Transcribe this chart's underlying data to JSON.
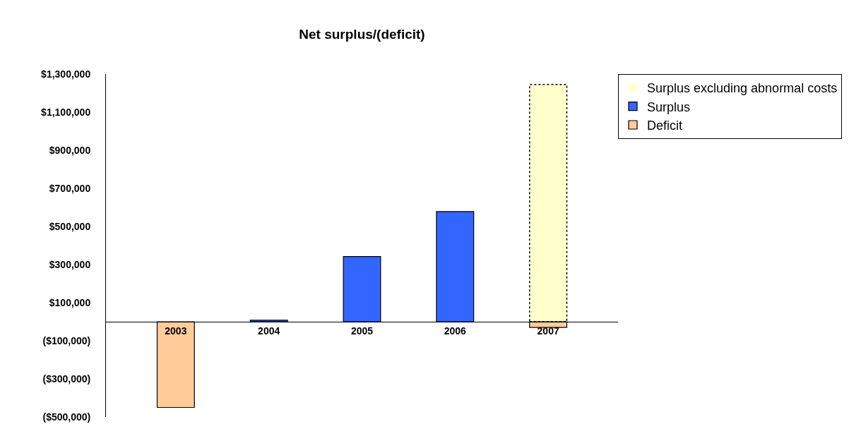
{
  "chart_data": {
    "type": "bar",
    "title": "Net surplus/(deficit)",
    "categories": [
      "2003",
      "2004",
      "2005",
      "2006",
      "2007"
    ],
    "series": [
      {
        "name": "Surplus excluding abnormal costs",
        "color": "#ffffcc",
        "line_style": "dotted",
        "values": [
          null,
          null,
          null,
          null,
          1245000
        ]
      },
      {
        "name": "Surplus",
        "color": "#3366ff",
        "values": [
          null,
          8000,
          342000,
          578000,
          null
        ]
      },
      {
        "name": "Deficit",
        "color": "#ffcc99",
        "values": [
          -450000,
          null,
          null,
          null,
          -30000
        ]
      }
    ],
    "stacked": true,
    "ylim": [
      -500000,
      1300000
    ],
    "yticks": [
      {
        "value": -500000,
        "label": "($500,000)"
      },
      {
        "value": -300000,
        "label": "($300,000)"
      },
      {
        "value": -100000,
        "label": "($100,000)"
      },
      {
        "value": 100000,
        "label": "$100,000"
      },
      {
        "value": 300000,
        "label": "$300,000"
      },
      {
        "value": 500000,
        "label": "$500,000"
      },
      {
        "value": 700000,
        "label": "$700,000"
      },
      {
        "value": 900000,
        "label": "$900,000"
      },
      {
        "value": 1100000,
        "label": "$1,100,000"
      },
      {
        "value": 1300000,
        "label": "$1,300,000"
      }
    ],
    "grid": false,
    "legend": "top right"
  }
}
